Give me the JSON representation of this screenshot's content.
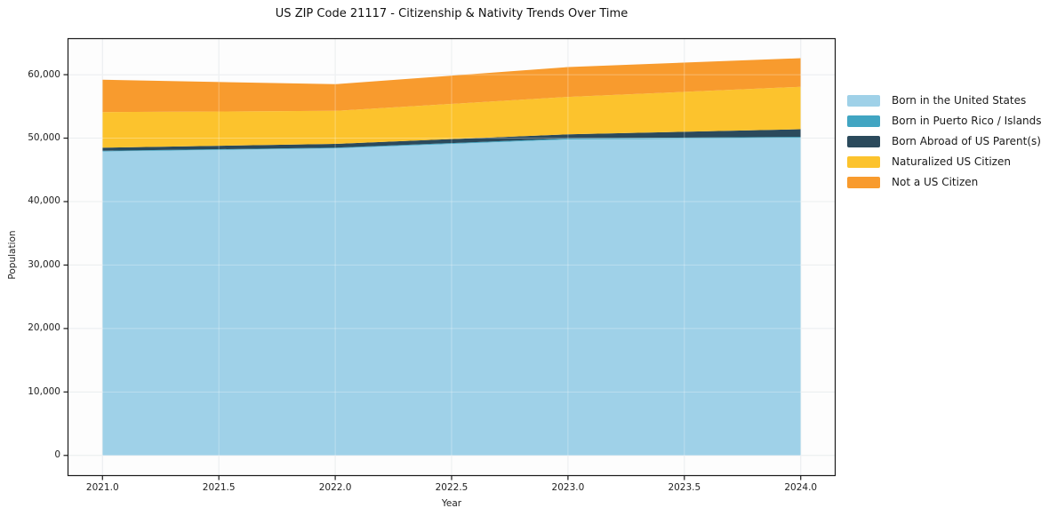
{
  "title": "US ZIP Code 21117 - Citizenship & Nativity Trends Over Time",
  "chart_data": {
    "type": "area",
    "stacked": true,
    "title": "US ZIP Code 21117 - Citizenship & Nativity Trends Over Time",
    "xlabel": "Year",
    "ylabel": "Population",
    "x": [
      2021,
      2022,
      2023,
      2024
    ],
    "xlim": [
      2020.85,
      2024.15
    ],
    "ylim": [
      -3250,
      65750
    ],
    "grid": true,
    "legend_position": "outside-right",
    "xticks": {
      "values": [
        2021.0,
        2021.5,
        2022.0,
        2022.5,
        2023.0,
        2023.5,
        2024.0
      ],
      "labels": [
        "2021.0",
        "2021.5",
        "2022.0",
        "2022.5",
        "2023.0",
        "2023.5",
        "2024.0"
      ]
    },
    "yticks": {
      "values": [
        0,
        10000,
        20000,
        30000,
        40000,
        50000,
        60000
      ],
      "labels": [
        "0",
        "10,000",
        "20,000",
        "30,000",
        "40,000",
        "50,000",
        "60,000"
      ]
    },
    "series": [
      {
        "name": "Born in the United States",
        "color": "#9fd1e8",
        "values": [
          47900,
          48400,
          49800,
          50000
        ]
      },
      {
        "name": "Born in Puerto Rico / Islands",
        "color": "#41a5c2",
        "values": [
          100,
          100,
          150,
          200
        ]
      },
      {
        "name": "Born Abroad of US Parent(s)",
        "color": "#2b4a5c",
        "values": [
          500,
          600,
          650,
          1200
        ]
      },
      {
        "name": "Naturalized US Citizen",
        "color": "#fcc32d",
        "values": [
          5600,
          5200,
          5900,
          6700
        ]
      },
      {
        "name": "Not a US Citizen",
        "color": "#f89b2e",
        "values": [
          5100,
          4200,
          4700,
          4500
        ]
      }
    ],
    "totals": [
      59200,
      58500,
      61200,
      62600
    ],
    "colors": {
      "spine": "#1a1a1a",
      "grid": "#e3e7ea",
      "plot_background": "#fdfdfd"
    }
  }
}
